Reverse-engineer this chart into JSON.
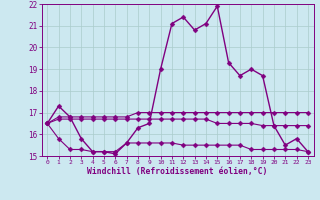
{
  "x": [
    0,
    1,
    2,
    3,
    4,
    5,
    6,
    7,
    8,
    9,
    10,
    11,
    12,
    13,
    14,
    15,
    16,
    17,
    18,
    19,
    20,
    21,
    22,
    23
  ],
  "line_main": [
    16.5,
    17.3,
    16.8,
    15.8,
    15.2,
    15.2,
    15.1,
    15.6,
    16.3,
    16.5,
    19.0,
    21.1,
    21.4,
    20.8,
    21.1,
    21.9,
    19.3,
    18.7,
    19.0,
    18.7,
    16.4,
    15.5,
    15.8,
    15.2
  ],
  "line_a": [
    16.5,
    16.8,
    16.8,
    16.8,
    16.8,
    16.8,
    16.8,
    16.8,
    17.0,
    17.0,
    17.0,
    17.0,
    17.0,
    17.0,
    17.0,
    17.0,
    17.0,
    17.0,
    17.0,
    17.0,
    17.0,
    17.0,
    17.0,
    17.0
  ],
  "line_b": [
    16.5,
    16.7,
    16.7,
    16.7,
    16.7,
    16.7,
    16.7,
    16.7,
    16.7,
    16.7,
    16.7,
    16.7,
    16.7,
    16.7,
    16.7,
    16.5,
    16.5,
    16.5,
    16.5,
    16.4,
    16.4,
    16.4,
    16.4,
    16.4
  ],
  "line_c": [
    16.5,
    15.8,
    15.3,
    15.3,
    15.2,
    15.2,
    15.2,
    15.6,
    15.6,
    15.6,
    15.6,
    15.6,
    15.5,
    15.5,
    15.5,
    15.5,
    15.5,
    15.5,
    15.3,
    15.3,
    15.3,
    15.3,
    15.3,
    15.2
  ],
  "ylim": [
    15,
    22
  ],
  "xlim": [
    -0.5,
    23.5
  ],
  "yticks": [
    15,
    16,
    17,
    18,
    19,
    20,
    21,
    22
  ],
  "xticks": [
    0,
    1,
    2,
    3,
    4,
    5,
    6,
    7,
    8,
    9,
    10,
    11,
    12,
    13,
    14,
    15,
    16,
    17,
    18,
    19,
    20,
    21,
    22,
    23
  ],
  "xlabel": "Windchill (Refroidissement éolien,°C)",
  "line_color": "#800080",
  "bg_color": "#cce8f0",
  "grid_color": "#aacccc",
  "marker_size": 2.5,
  "lw_main": 1.0,
  "lw_flat": 0.8
}
